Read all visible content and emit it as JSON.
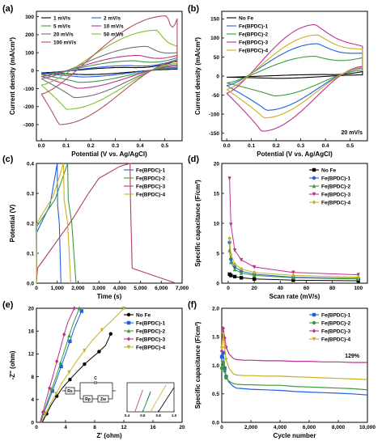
{
  "chart_data": [
    {
      "panel": "(a)",
      "type": "line",
      "xlabel": "Potential (V vs. Ag/AgCl)",
      "ylabel": "Current density (mA/cm²)",
      "xlim": [
        -0.02,
        0.57
      ],
      "ylim": [
        -390,
        330
      ],
      "xticks": [
        "0.0",
        "0.1",
        "0.2",
        "0.3",
        "0.4",
        "0.5"
      ],
      "yticks": [
        "-300",
        "-200",
        "-100",
        "0",
        "100",
        "200",
        "300"
      ],
      "legend": "top-left, two columns",
      "series": [
        {
          "name": "1 mV/s",
          "color": "#000000",
          "anodic_peak": [
            0.35,
            18
          ],
          "cathodic_peak": [
            0.17,
            -22
          ],
          "start": [
            0.0,
            -12
          ],
          "end": [
            0.55,
            55
          ],
          "end_low": 8
        },
        {
          "name": "2 mV/s",
          "color": "#2060e0",
          "anodic_peak": [
            0.36,
            28
          ],
          "cathodic_peak": [
            0.16,
            -35
          ],
          "start": [
            0.0,
            -16
          ],
          "end": [
            0.55,
            62
          ],
          "end_low": 12
        },
        {
          "name": "5 mV/s",
          "color": "#3a9a3a",
          "anodic_peak": [
            0.38,
            55
          ],
          "cathodic_peak": [
            0.15,
            -65
          ],
          "start": [
            0.0,
            -22
          ],
          "end": [
            0.55,
            72
          ],
          "end_low": 18
        },
        {
          "name": "10 mV/s",
          "color": "#c03090",
          "anodic_peak": [
            0.4,
            85
          ],
          "cathodic_peak": [
            0.14,
            -98
          ],
          "start": [
            0.0,
            -32
          ],
          "end": [
            0.55,
            85
          ],
          "end_low": 25
        },
        {
          "name": "20 mV/s",
          "color": "#707070",
          "anodic_peak": [
            0.43,
            135
          ],
          "cathodic_peak": [
            0.13,
            -150
          ],
          "start": [
            0.0,
            -45
          ],
          "end": [
            0.55,
            100
          ],
          "end_low": 32
        },
        {
          "name": "50 mV/s",
          "color": "#80c030",
          "anodic_peak": [
            0.47,
            225
          ],
          "cathodic_peak": [
            0.1,
            -215
          ],
          "start": [
            0.0,
            -80
          ],
          "end": [
            0.55,
            135
          ],
          "end_low": 40
        },
        {
          "name": "100 mV/s",
          "color": "#b05060",
          "anodic_peak": [
            0.51,
            305
          ],
          "cathodic_peak": [
            0.07,
            -300
          ],
          "start": [
            0.0,
            -130
          ],
          "end": [
            0.55,
            290
          ],
          "end_low": 50
        }
      ]
    },
    {
      "panel": "(b)",
      "type": "line",
      "xlabel": "Potential (V vs. Ag/AgCl)",
      "ylabel": "Current density (mA/cm²)",
      "xlim": [
        -0.02,
        0.57
      ],
      "ylim": [
        -170,
        170
      ],
      "xticks": [
        "0.0",
        "0.1",
        "0.2",
        "0.3",
        "0.4",
        "0.5"
      ],
      "yticks": [
        "-150",
        "-100",
        "-50",
        "0",
        "50",
        "100",
        "150"
      ],
      "legend": "top-left",
      "annotation": "20 mV/s",
      "series": [
        {
          "name": "No Fe",
          "color": "#000000",
          "anodic_peak": [
            0.4,
            4
          ],
          "cathodic_peak": [
            0.2,
            -6
          ],
          "start": [
            0.0,
            -3
          ],
          "end": [
            0.55,
            12
          ],
          "end_low": 3
        },
        {
          "name": "Fe(BPDC)-1",
          "color": "#2060e0",
          "anodic_peak": [
            0.37,
            85
          ],
          "cathodic_peak": [
            0.16,
            -90
          ],
          "start": [
            0.0,
            -25
          ],
          "end": [
            0.55,
            60
          ],
          "end_low": 20
        },
        {
          "name": "Fe(BPDC)-2",
          "color": "#3a9a3a",
          "anodic_peak": [
            0.36,
            52
          ],
          "cathodic_peak": [
            0.19,
            -52
          ],
          "start": [
            0.0,
            -18
          ],
          "end": [
            0.55,
            48
          ],
          "end_low": 15
        },
        {
          "name": "Fe(BPDC)-3",
          "color": "#c03090",
          "anodic_peak": [
            0.36,
            135
          ],
          "cathodic_peak": [
            0.14,
            -145
          ],
          "start": [
            0.0,
            -45
          ],
          "end": [
            0.55,
            78
          ],
          "end_low": 25
        },
        {
          "name": "Fe(BPDC)-4",
          "color": "#c8b020",
          "anodic_peak": [
            0.37,
            108
          ],
          "cathodic_peak": [
            0.15,
            -110
          ],
          "start": [
            0.0,
            -35
          ],
          "end": [
            0.55,
            70
          ],
          "end_low": 22
        }
      ]
    },
    {
      "panel": "(c)",
      "type": "line",
      "xlabel": "Time (s)",
      "ylabel": "Potential (V)",
      "xlim": [
        0,
        7000
      ],
      "ylim": [
        0,
        0.4
      ],
      "xticks": [
        "0",
        "1,000",
        "2,000",
        "3,000",
        "4,000",
        "5,000",
        "6,000",
        "7,000"
      ],
      "yticks": [
        "0.0",
        "0.1",
        "0.2",
        "0.3",
        "0.4"
      ],
      "legend": "top-right",
      "series": [
        {
          "name": "Fe(BPDC)-1",
          "color": "#2060e0",
          "points": [
            [
              0,
              0.0
            ],
            [
              15,
              0.17
            ],
            [
              650,
              0.26
            ],
            [
              1000,
              0.4
            ],
            [
              1020,
              0.26
            ],
            [
              1100,
              0.2
            ],
            [
              1180,
              0.0
            ]
          ]
        },
        {
          "name": "Fe(BPDC)-2",
          "color": "#3a9a3a",
          "points": [
            [
              0,
              0.0
            ],
            [
              25,
              0.19
            ],
            [
              900,
              0.28
            ],
            [
              1500,
              0.4
            ],
            [
              1530,
              0.28
            ],
            [
              1700,
              0.2
            ],
            [
              1850,
              0.05
            ],
            [
              1900,
              0.0
            ]
          ]
        },
        {
          "name": "Fe(BPDC)-3",
          "color": "#b04060",
          "points": [
            [
              0,
              0.0
            ],
            [
              50,
              0.05
            ],
            [
              1700,
              0.21
            ],
            [
              2500,
              0.3
            ],
            [
              3000,
              0.35
            ],
            [
              4000,
              0.39
            ],
            [
              4500,
              0.4
            ],
            [
              4520,
              0.28
            ],
            [
              4600,
              0.05
            ],
            [
              6700,
              0.0
            ]
          ]
        },
        {
          "name": "Fe(BPDC)-4",
          "color": "#c8b020",
          "points": [
            [
              0,
              0.0
            ],
            [
              20,
              0.2
            ],
            [
              800,
              0.29
            ],
            [
              1300,
              0.4
            ],
            [
              1330,
              0.28
            ],
            [
              1500,
              0.2
            ],
            [
              1650,
              0.0
            ]
          ]
        }
      ]
    },
    {
      "panel": "(d)",
      "type": "line",
      "xlabel": "Scan rate (mV/s)",
      "ylabel": "Specific capacitance (F/cm²)",
      "xlim": [
        -5,
        107
      ],
      "ylim": [
        0,
        20
      ],
      "xticks": [
        "0",
        "20",
        "40",
        "60",
        "80",
        "100"
      ],
      "yticks": [
        "0",
        "5",
        "10",
        "15",
        "20"
      ],
      "x": [
        1,
        2,
        5,
        10,
        20,
        50,
        100
      ],
      "legend": "top-right",
      "series": [
        {
          "name": "No Fe",
          "color": "#000000",
          "values": [
            1.5,
            1.3,
            1.1,
            0.9,
            0.7,
            0.5,
            0.4
          ]
        },
        {
          "name": "Fe(BPDC)-1",
          "color": "#2060e0",
          "values": [
            6.8,
            4.0,
            2.7,
            2.0,
            1.5,
            1.0,
            0.8
          ]
        },
        {
          "name": "Fe(BPDC)-2",
          "color": "#3a9a3a",
          "values": [
            5.5,
            3.5,
            2.3,
            1.7,
            1.3,
            0.9,
            0.7
          ]
        },
        {
          "name": "Fe(BPDC)-3",
          "color": "#c03090",
          "values": [
            17.5,
            9.8,
            5.5,
            3.9,
            2.7,
            1.8,
            1.4
          ]
        },
        {
          "name": "Fe(BPDC)-4",
          "color": "#c8b020",
          "values": [
            7.5,
            4.8,
            3.2,
            2.4,
            1.8,
            1.3,
            1.0
          ]
        }
      ]
    },
    {
      "panel": "(e)",
      "type": "scatter",
      "xlabel": "Z' (ohm)",
      "ylabel": "-Z'' (ohm)",
      "xlim": [
        0,
        20
      ],
      "ylim": [
        0,
        20
      ],
      "xticks": [
        "0",
        "4",
        "8",
        "12",
        "16",
        "20"
      ],
      "yticks": [
        "0",
        "4",
        "8",
        "12",
        "16",
        "20"
      ],
      "legend": "top-right",
      "inset": {
        "xlim": [
          0.4,
          1.0
        ],
        "xticks": [
          "0.4",
          "0.6",
          "0.8",
          "1.0"
        ],
        "circuit_labels": [
          "Rs",
          "C",
          "Rp",
          "Zw"
        ]
      },
      "series": [
        {
          "name": "No Fe",
          "color": "#000000",
          "points": [
            [
              0.8,
              0.0
            ],
            [
              1.4,
              1.5
            ],
            [
              2.0,
              3.0
            ],
            [
              2.8,
              4.6
            ],
            [
              3.6,
              6.1
            ],
            [
              4.6,
              7.5
            ],
            [
              5.6,
              8.9
            ],
            [
              6.6,
              10.2
            ],
            [
              7.6,
              11.3
            ],
            [
              8.6,
              12.4
            ],
            [
              9.5,
              13.5
            ],
            [
              10.2,
              15.5
            ]
          ]
        },
        {
          "name": "Fe(BPDC)-1",
          "color": "#2060e0",
          "points": [
            [
              0.6,
              0.0
            ],
            [
              1.0,
              1.6
            ],
            [
              1.6,
              3.5
            ],
            [
              2.2,
              5.5
            ],
            [
              2.8,
              7.6
            ],
            [
              3.4,
              9.8
            ],
            [
              4.0,
              12.0
            ],
            [
              4.6,
              14.2
            ],
            [
              5.2,
              16.5
            ],
            [
              6.2,
              19.5
            ]
          ]
        },
        {
          "name": "Fe(BPDC)-2",
          "color": "#3a9a3a",
          "points": [
            [
              0.6,
              0.0
            ],
            [
              1.0,
              1.7
            ],
            [
              1.5,
              3.6
            ],
            [
              2.1,
              5.8
            ],
            [
              2.7,
              8.0
            ],
            [
              3.3,
              10.4
            ],
            [
              3.9,
              12.8
            ],
            [
              4.5,
              15.2
            ],
            [
              5.1,
              17.5
            ],
            [
              5.9,
              20.0
            ]
          ]
        },
        {
          "name": "Fe(BPDC)-3",
          "color": "#c03090",
          "points": [
            [
              0.5,
              0.0
            ],
            [
              0.9,
              1.8
            ],
            [
              1.3,
              3.8
            ],
            [
              1.8,
              6.0
            ],
            [
              2.3,
              8.3
            ],
            [
              2.8,
              10.7
            ],
            [
              3.3,
              13.0
            ],
            [
              3.8,
              15.4
            ],
            [
              4.3,
              17.5
            ],
            [
              5.2,
              20.0
            ]
          ]
        },
        {
          "name": "Fe(BPDC)-4",
          "color": "#c8b020",
          "points": [
            [
              0.7,
              0.0
            ],
            [
              1.2,
              1.4
            ],
            [
              1.9,
              3.2
            ],
            [
              2.7,
              5.0
            ],
            [
              3.5,
              6.9
            ],
            [
              4.5,
              8.8
            ],
            [
              5.5,
              10.7
            ],
            [
              6.6,
              12.6
            ],
            [
              7.7,
              14.4
            ],
            [
              9.0,
              16.2
            ],
            [
              10.5,
              18.0
            ],
            [
              12.0,
              20.0
            ]
          ]
        }
      ]
    },
    {
      "panel": "(f)",
      "type": "line",
      "xlabel": "Cycle number",
      "ylabel": "Specific capacitance (F/cm²)",
      "xlim": [
        0,
        10000
      ],
      "ylim": [
        0.0,
        2.0
      ],
      "xticks": [
        "0",
        "2,000",
        "4,000",
        "6,000",
        "8,000",
        "10,000"
      ],
      "yticks": [
        "0.0",
        "0.5",
        "1.0",
        "1.5",
        "2.0"
      ],
      "legend": "top-right",
      "annotation": "129%",
      "x": [
        0,
        100,
        200,
        300,
        500,
        800,
        1000,
        1500,
        2000,
        3000,
        4000,
        5000,
        6000,
        7000,
        8000,
        9000,
        10000
      ],
      "series": [
        {
          "name": "Fe(BPDC)-1",
          "color": "#2060e0",
          "values": [
            1.15,
            1.22,
            0.95,
            0.8,
            0.7,
            0.63,
            0.6,
            0.59,
            0.58,
            0.57,
            0.56,
            0.54,
            0.53,
            0.52,
            0.51,
            0.5,
            0.48
          ]
        },
        {
          "name": "Fe(BPDC)-2",
          "color": "#3a9a3a",
          "values": [
            0.95,
            1.05,
            0.9,
            0.78,
            0.72,
            0.68,
            0.67,
            0.66,
            0.66,
            0.65,
            0.65,
            0.63,
            0.62,
            0.61,
            0.6,
            0.59,
            0.57
          ]
        },
        {
          "name": "Fe(BPDC)-3",
          "color": "#c03090",
          "values": [
            1.25,
            1.65,
            1.48,
            1.32,
            1.2,
            1.12,
            1.1,
            1.09,
            1.09,
            1.08,
            1.08,
            1.07,
            1.07,
            1.06,
            1.06,
            1.05,
            1.05
          ]
        },
        {
          "name": "Fe(BPDC)-4",
          "color": "#c8b020",
          "values": [
            1.3,
            1.55,
            1.3,
            1.1,
            0.95,
            0.85,
            0.83,
            0.82,
            0.82,
            0.81,
            0.81,
            0.8,
            0.79,
            0.78,
            0.77,
            0.76,
            0.75
          ]
        }
      ]
    }
  ]
}
